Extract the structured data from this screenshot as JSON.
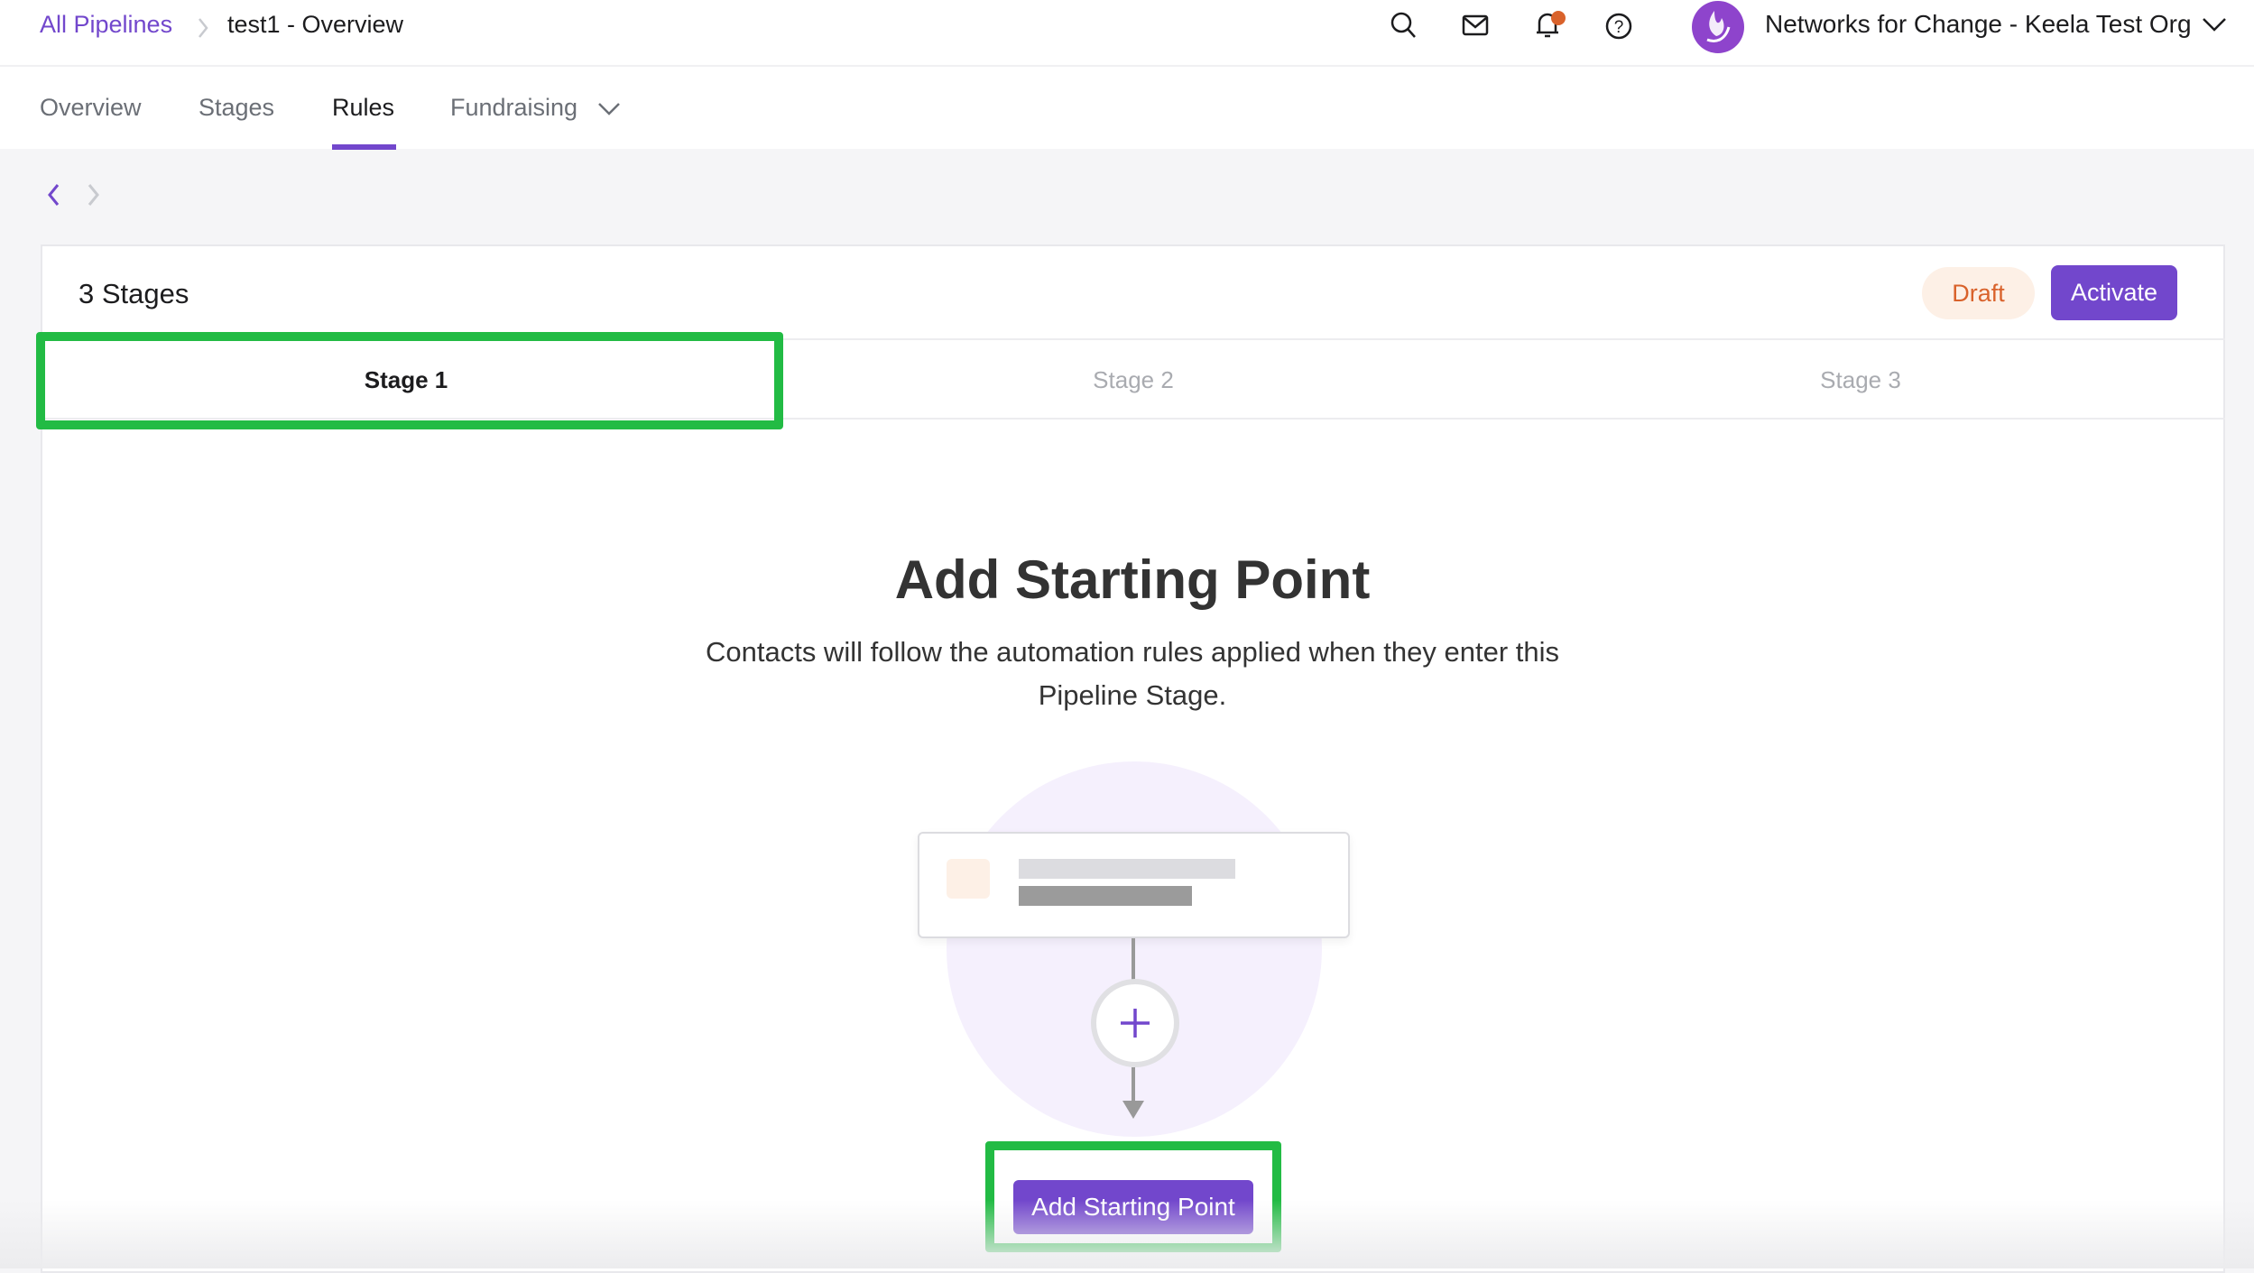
{
  "breadcrumb": {
    "root": "All Pipelines",
    "current": "test1 - Overview"
  },
  "header": {
    "org_name": "Networks for Change - Keela Test Org",
    "icons": [
      "search-icon",
      "mail-icon",
      "bell-icon",
      "help-icon"
    ],
    "notification_dot_color": "#d9622b"
  },
  "tabs": [
    {
      "label": "Overview"
    },
    {
      "label": "Stages"
    },
    {
      "label": "Rules",
      "active": true
    },
    {
      "label": "Fundraising",
      "dropdown": true
    }
  ],
  "card": {
    "title": "3 Stages",
    "status_label": "Draft",
    "activate_label": "Activate",
    "stages": [
      {
        "label": "Stage 1",
        "active": true
      },
      {
        "label": "Stage 2"
      },
      {
        "label": "Stage 3"
      }
    ]
  },
  "empty_state": {
    "title": "Add Starting Point",
    "description_line1": "Contacts will follow the automation rules applied when they enter this",
    "description_line2": "Pipeline Stage.",
    "button_label": "Add Starting Point"
  },
  "colors": {
    "accent": "#7247cc",
    "draft_bg": "#fdf0e6",
    "draft_text": "#d9622b",
    "highlight": "#22bb44"
  }
}
